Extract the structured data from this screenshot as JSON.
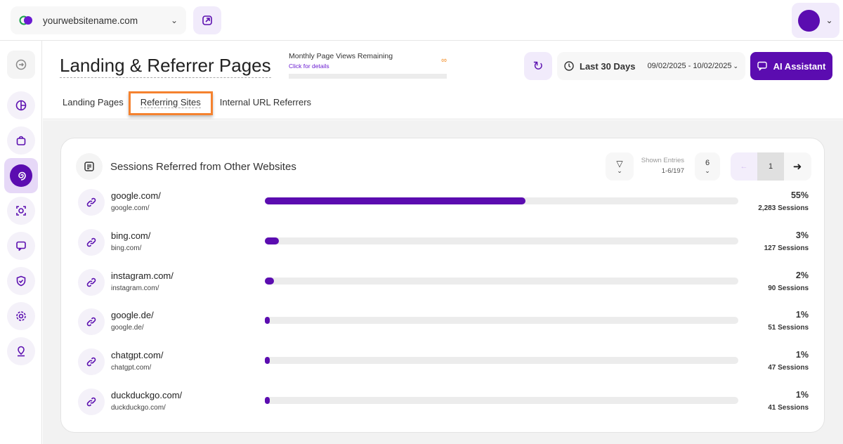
{
  "topbar": {
    "site": "yourwebsitename.com"
  },
  "header": {
    "title": "Landing & Referrer Pages",
    "quota": {
      "title": "Monthly Page Views Remaining",
      "link": "Click for details",
      "value": "∞"
    },
    "range_label": "Last 30 Days",
    "range_dates": "09/02/2025 - 10/02/2025",
    "ai_button": "AI Assistant"
  },
  "tabs": [
    {
      "label": "Landing Pages"
    },
    {
      "label": "Referring Sites",
      "active": true
    },
    {
      "label": "Internal URL Referrers"
    }
  ],
  "card": {
    "title": "Sessions Referred from Other Websites",
    "shown_label": "Shown Entries",
    "shown_value": "1-6/197",
    "per_page": "6",
    "page": "1",
    "rows": [
      {
        "name": "google.com/",
        "sub": "google.com/",
        "percent": "55%",
        "sessions": "2,283 Sessions",
        "fill": 55
      },
      {
        "name": "bing.com/",
        "sub": "bing.com/",
        "percent": "3%",
        "sessions": "127 Sessions",
        "fill": 3
      },
      {
        "name": "instagram.com/",
        "sub": "instagram.com/",
        "percent": "2%",
        "sessions": "90 Sessions",
        "fill": 2
      },
      {
        "name": "google.de/",
        "sub": "google.de/",
        "percent": "1%",
        "sessions": "51 Sessions",
        "fill": 1
      },
      {
        "name": "chatgpt.com/",
        "sub": "chatgpt.com/",
        "percent": "1%",
        "sessions": "47 Sessions",
        "fill": 1
      },
      {
        "name": "duckduckgo.com/",
        "sub": "duckduckgo.com/",
        "percent": "1%",
        "sessions": "41 Sessions",
        "fill": 1
      }
    ]
  },
  "colors": {
    "accent": "#5b0cb0",
    "highlight": "#f5822f"
  }
}
